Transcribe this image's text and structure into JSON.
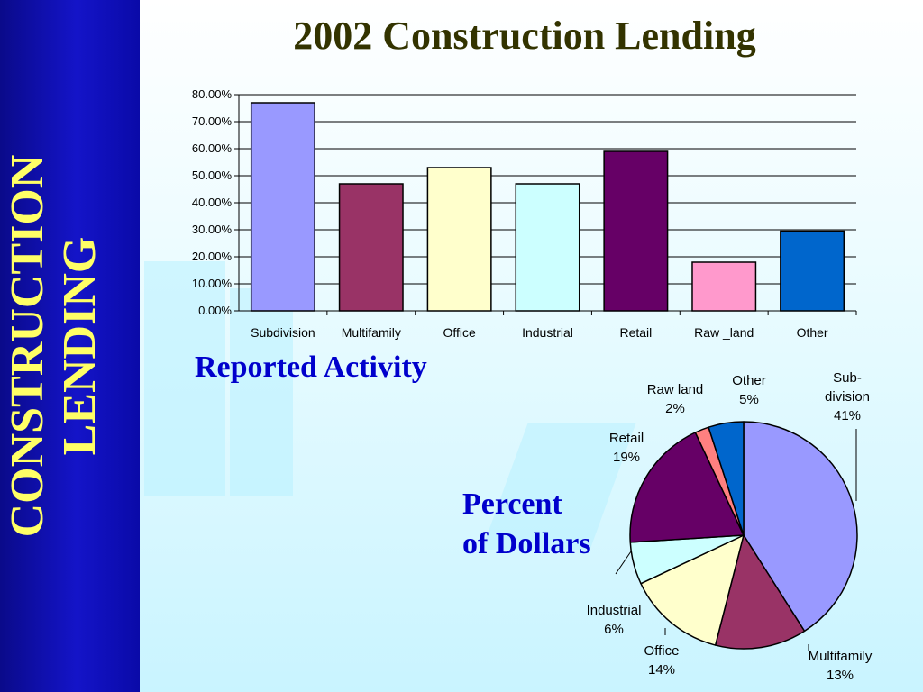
{
  "sidebar": {
    "title_line1": "CONSTRUCTION",
    "title_line2": "LENDING"
  },
  "title": "2002 Construction Lending",
  "captions": {
    "bar": "Reported Activity",
    "pie_line1": "Percent",
    "pie_line2": "of Dollars"
  },
  "colors": {
    "sidebar": "#1414c8",
    "sidebar_text": "#ffff66",
    "title": "#333300",
    "caption": "#0000cc"
  },
  "chart_data": [
    {
      "type": "bar",
      "categories": [
        "Subdivision",
        "Multifamily",
        "Office",
        "Industrial",
        "Retail",
        "Raw _land",
        "Other"
      ],
      "values": [
        77,
        47,
        53,
        47,
        59,
        18,
        29.5
      ],
      "colors": [
        "#9999ff",
        "#993366",
        "#ffffcc",
        "#ccffff",
        "#660066",
        "#ff99cc",
        "#0066cc"
      ],
      "yticks": [
        "0.00%",
        "10.00%",
        "20.00%",
        "30.00%",
        "40.00%",
        "50.00%",
        "60.00%",
        "70.00%",
        "80.00%"
      ],
      "ylim": [
        0,
        80
      ],
      "grid": true
    },
    {
      "type": "pie",
      "slices": [
        {
          "label_lines": [
            "Sub-",
            "division",
            "41%"
          ],
          "value": 41,
          "color": "#9999ff"
        },
        {
          "label_lines": [
            "Multifamily",
            "13%"
          ],
          "value": 13,
          "color": "#993366"
        },
        {
          "label_lines": [
            "Office",
            "14%"
          ],
          "value": 14,
          "color": "#ffffcc"
        },
        {
          "label_lines": [
            "Industrial",
            "6%"
          ],
          "value": 6,
          "color": "#ccffff"
        },
        {
          "label_lines": [
            "Retail",
            "19%"
          ],
          "value": 19,
          "color": "#660066"
        },
        {
          "label_lines": [
            "Raw land",
            "2%"
          ],
          "value": 2,
          "color": "#ff8080"
        },
        {
          "label_lines": [
            "Other",
            "5%"
          ],
          "value": 5,
          "color": "#0066cc"
        }
      ]
    }
  ]
}
